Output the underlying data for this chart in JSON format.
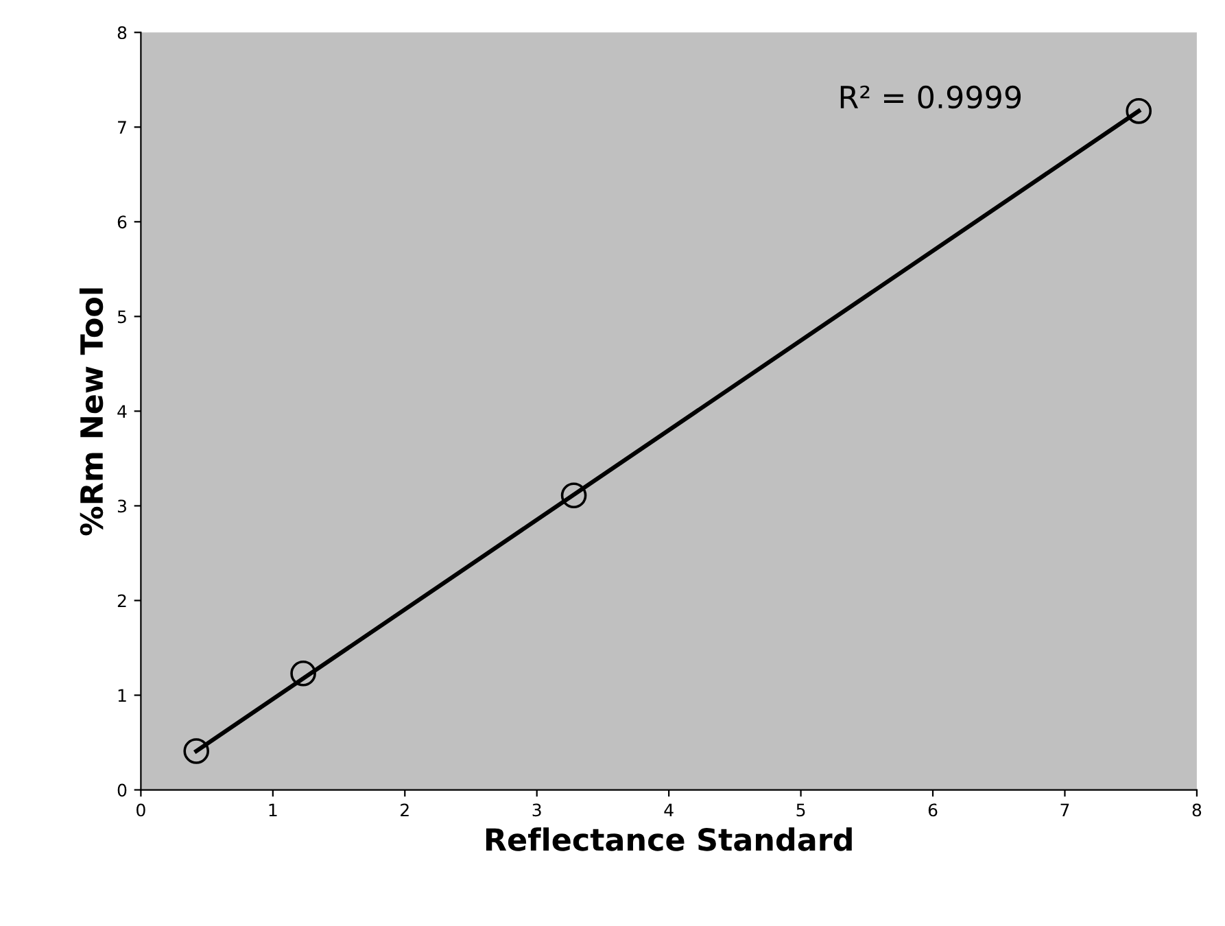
{
  "chart_data": {
    "type": "scatter",
    "xlabel": "Reflectance Standard",
    "ylabel": "%Rm New Tool",
    "xlim": [
      0,
      8
    ],
    "ylim": [
      0,
      8
    ],
    "xticks": [
      0,
      1,
      2,
      3,
      4,
      5,
      6,
      7,
      8
    ],
    "yticks": [
      0,
      1,
      2,
      3,
      4,
      5,
      6,
      7,
      8
    ],
    "grid": false,
    "legend": false,
    "marker": "circle",
    "series": [
      {
        "color": "#000000",
        "x": [
          0.42,
          1.23,
          3.28,
          7.56
        ],
        "values": [
          0.41,
          1.23,
          3.11,
          7.17
        ]
      },
      {
        "type": "line",
        "color": "#000000",
        "x": [
          0.42,
          7.56
        ],
        "values": [
          0.41,
          7.17
        ],
        "marker": "none",
        "line_style": "solid"
      }
    ],
    "annotations": [
      "R² = 0.9999"
    ]
  }
}
